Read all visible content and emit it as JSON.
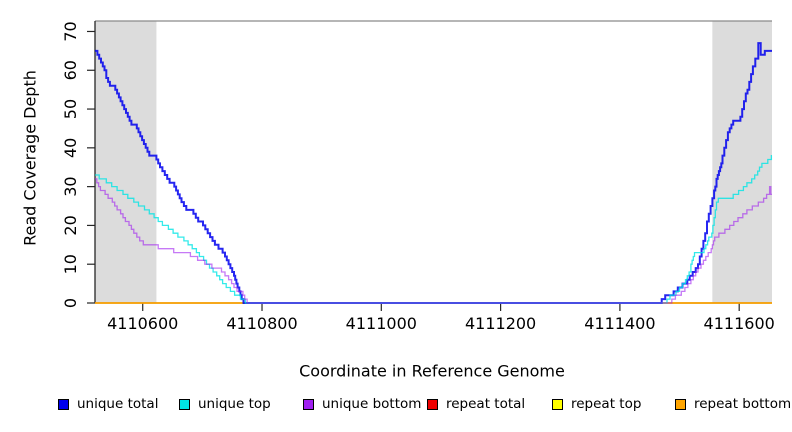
{
  "chart_data": {
    "type": "line",
    "subtype": "step-coverage-plot",
    "title": "",
    "xlabel": "Coordinate in Reference Genome",
    "ylabel": "Read Coverage Depth",
    "xlim": [
      4110520,
      4111655
    ],
    "ylim": [
      0,
      72.7
    ],
    "x_ticks": [
      4110600,
      4110800,
      4111000,
      4111200,
      4111400,
      4111600
    ],
    "y_ticks": [
      0,
      10,
      20,
      30,
      40,
      50,
      60,
      70
    ],
    "grid": false,
    "legend_position": "bottom",
    "background_color": "#FFFFFF",
    "shade_color": "#DCDCDC",
    "frame_color": "#8A8A8A",
    "axis_color": "#262626",
    "shaded_regions": [
      {
        "from": 4110520,
        "to": 4110623
      },
      {
        "from": 4111555,
        "to": 4111655
      }
    ],
    "series": [
      {
        "name": "unique total",
        "color": "#0000EE",
        "line_width": 2,
        "opacity": 0.85,
        "points": [
          [
            4110520,
            65
          ],
          [
            4110524,
            64
          ],
          [
            4110527,
            63
          ],
          [
            4110530,
            62
          ],
          [
            4110533,
            61
          ],
          [
            4110536,
            60
          ],
          [
            4110539,
            58
          ],
          [
            4110542,
            57
          ],
          [
            4110545,
            56
          ],
          [
            4110554,
            55
          ],
          [
            4110557,
            54
          ],
          [
            4110560,
            53
          ],
          [
            4110563,
            52
          ],
          [
            4110566,
            51
          ],
          [
            4110569,
            50
          ],
          [
            4110572,
            49
          ],
          [
            4110575,
            48
          ],
          [
            4110578,
            47
          ],
          [
            4110581,
            46
          ],
          [
            4110590,
            45
          ],
          [
            4110593,
            44
          ],
          [
            4110596,
            43
          ],
          [
            4110599,
            42
          ],
          [
            4110602,
            41
          ],
          [
            4110605,
            40
          ],
          [
            4110608,
            39
          ],
          [
            4110611,
            38
          ],
          [
            4110623,
            37
          ],
          [
            4110626,
            36
          ],
          [
            4110629,
            35
          ],
          [
            4110633,
            34
          ],
          [
            4110637,
            33
          ],
          [
            4110641,
            32
          ],
          [
            4110645,
            31
          ],
          [
            4110653,
            30
          ],
          [
            4110656,
            29
          ],
          [
            4110659,
            28
          ],
          [
            4110662,
            27
          ],
          [
            4110665,
            26
          ],
          [
            4110669,
            25
          ],
          [
            4110673,
            24
          ],
          [
            4110685,
            23
          ],
          [
            4110689,
            22
          ],
          [
            4110693,
            21
          ],
          [
            4110701,
            20
          ],
          [
            4110705,
            19
          ],
          [
            4110709,
            18
          ],
          [
            4110713,
            17
          ],
          [
            4110717,
            16
          ],
          [
            4110721,
            15
          ],
          [
            4110727,
            14
          ],
          [
            4110734,
            13
          ],
          [
            4110738,
            12
          ],
          [
            4110741,
            11
          ],
          [
            4110744,
            10
          ],
          [
            4110747,
            9
          ],
          [
            4110750,
            8
          ],
          [
            4110753,
            7
          ],
          [
            4110755,
            6
          ],
          [
            4110757,
            5
          ],
          [
            4110759,
            4
          ],
          [
            4110762,
            3
          ],
          [
            4110764,
            2
          ],
          [
            4110766,
            1
          ],
          [
            4110769,
            0
          ],
          [
            4111470,
            1
          ],
          [
            4111476,
            2
          ],
          [
            4111490,
            3
          ],
          [
            4111497,
            4
          ],
          [
            4111505,
            5
          ],
          [
            4111513,
            6
          ],
          [
            4111517,
            7
          ],
          [
            4111522,
            8
          ],
          [
            4111527,
            9
          ],
          [
            4111531,
            10
          ],
          [
            4111534,
            12
          ],
          [
            4111537,
            14
          ],
          [
            4111540,
            16
          ],
          [
            4111543,
            18
          ],
          [
            4111546,
            21
          ],
          [
            4111549,
            23
          ],
          [
            4111552,
            25
          ],
          [
            4111555,
            27
          ],
          [
            4111558,
            29
          ],
          [
            4111560,
            30
          ],
          [
            4111562,
            32
          ],
          [
            4111564,
            33
          ],
          [
            4111566,
            34
          ],
          [
            4111568,
            35
          ],
          [
            4111570,
            36
          ],
          [
            4111572,
            38
          ],
          [
            4111575,
            40
          ],
          [
            4111578,
            42
          ],
          [
            4111581,
            44
          ],
          [
            4111584,
            45
          ],
          [
            4111587,
            46
          ],
          [
            4111590,
            47
          ],
          [
            4111602,
            48
          ],
          [
            4111605,
            50
          ],
          [
            4111608,
            52
          ],
          [
            4111611,
            54
          ],
          [
            4111614,
            55
          ],
          [
            4111617,
            57
          ],
          [
            4111620,
            59
          ],
          [
            4111623,
            61
          ],
          [
            4111627,
            63
          ],
          [
            4111632,
            67
          ],
          [
            4111636,
            64
          ],
          [
            4111643,
            65
          ]
        ]
      },
      {
        "name": "unique top",
        "color": "#00E5E5",
        "line_width": 1.3,
        "opacity": 0.8,
        "points": [
          [
            4110520,
            33
          ],
          [
            4110527,
            32
          ],
          [
            4110539,
            31
          ],
          [
            4110548,
            30
          ],
          [
            4110557,
            29
          ],
          [
            4110567,
            28
          ],
          [
            4110575,
            27
          ],
          [
            4110585,
            26
          ],
          [
            4110593,
            25
          ],
          [
            4110603,
            24
          ],
          [
            4110611,
            23
          ],
          [
            4110619,
            22
          ],
          [
            4110626,
            21
          ],
          [
            4110633,
            20
          ],
          [
            4110643,
            19
          ],
          [
            4110651,
            18
          ],
          [
            4110659,
            17
          ],
          [
            4110669,
            16
          ],
          [
            4110676,
            15
          ],
          [
            4110683,
            14
          ],
          [
            4110690,
            13
          ],
          [
            4110695,
            12
          ],
          [
            4110702,
            11
          ],
          [
            4110707,
            10
          ],
          [
            4110712,
            9
          ],
          [
            4110718,
            8
          ],
          [
            4110724,
            7
          ],
          [
            4110729,
            6
          ],
          [
            4110734,
            5
          ],
          [
            4110740,
            4
          ],
          [
            4110747,
            3
          ],
          [
            4110754,
            2
          ],
          [
            4110764,
            1
          ],
          [
            4110772,
            0
          ],
          [
            4111479,
            1
          ],
          [
            4111484,
            2
          ],
          [
            4111494,
            3
          ],
          [
            4111500,
            4
          ],
          [
            4111505,
            5
          ],
          [
            4111510,
            6
          ],
          [
            4111513,
            7
          ],
          [
            4111516,
            8
          ],
          [
            4111519,
            10
          ],
          [
            4111521,
            11
          ],
          [
            4111523,
            12
          ],
          [
            4111525,
            13
          ],
          [
            4111541,
            14
          ],
          [
            4111544,
            15
          ],
          [
            4111547,
            16
          ],
          [
            4111549,
            17
          ],
          [
            4111554,
            18
          ],
          [
            4111556,
            20
          ],
          [
            4111558,
            22
          ],
          [
            4111560,
            24
          ],
          [
            4111562,
            26
          ],
          [
            4111565,
            27
          ],
          [
            4111590,
            28
          ],
          [
            4111599,
            29
          ],
          [
            4111607,
            30
          ],
          [
            4111613,
            31
          ],
          [
            4111621,
            32
          ],
          [
            4111626,
            33
          ],
          [
            4111631,
            34
          ],
          [
            4111634,
            35
          ],
          [
            4111638,
            36
          ],
          [
            4111648,
            37
          ],
          [
            4111654,
            38
          ]
        ]
      },
      {
        "name": "unique bottom",
        "color": "#A020F0",
        "line_width": 1.3,
        "opacity": 0.6,
        "points": [
          [
            4110520,
            32
          ],
          [
            4110523,
            31
          ],
          [
            4110526,
            30
          ],
          [
            4110529,
            29
          ],
          [
            4110537,
            28
          ],
          [
            4110542,
            27
          ],
          [
            4110549,
            26
          ],
          [
            4110553,
            25
          ],
          [
            4110557,
            24
          ],
          [
            4110563,
            23
          ],
          [
            4110567,
            22
          ],
          [
            4110571,
            21
          ],
          [
            4110577,
            20
          ],
          [
            4110581,
            19
          ],
          [
            4110585,
            18
          ],
          [
            4110590,
            17
          ],
          [
            4110595,
            16
          ],
          [
            4110601,
            15
          ],
          [
            4110626,
            14
          ],
          [
            4110652,
            13
          ],
          [
            4110680,
            12
          ],
          [
            4110692,
            11
          ],
          [
            4110704,
            10
          ],
          [
            4110716,
            9
          ],
          [
            4110732,
            8
          ],
          [
            4110738,
            7
          ],
          [
            4110744,
            6
          ],
          [
            4110749,
            5
          ],
          [
            4110753,
            4
          ],
          [
            4110758,
            3
          ],
          [
            4110768,
            2
          ],
          [
            4110771,
            1
          ],
          [
            4110775,
            0
          ],
          [
            4111487,
            1
          ],
          [
            4111493,
            2
          ],
          [
            4111503,
            3
          ],
          [
            4111509,
            4
          ],
          [
            4111514,
            5
          ],
          [
            4111519,
            6
          ],
          [
            4111523,
            7
          ],
          [
            4111527,
            8
          ],
          [
            4111531,
            9
          ],
          [
            4111536,
            10
          ],
          [
            4111540,
            11
          ],
          [
            4111544,
            12
          ],
          [
            4111548,
            13
          ],
          [
            4111553,
            14
          ],
          [
            4111555,
            15
          ],
          [
            4111557,
            16
          ],
          [
            4111559,
            17
          ],
          [
            4111566,
            18
          ],
          [
            4111576,
            19
          ],
          [
            4111584,
            20
          ],
          [
            4111591,
            21
          ],
          [
            4111598,
            22
          ],
          [
            4111606,
            23
          ],
          [
            4111613,
            24
          ],
          [
            4111622,
            25
          ],
          [
            4111632,
            26
          ],
          [
            4111641,
            27
          ],
          [
            4111646,
            28
          ],
          [
            4111651,
            30
          ],
          [
            4111653,
            28
          ]
        ]
      },
      {
        "name": "repeat total",
        "color": "#EE0000",
        "line_width": 1.3,
        "opacity": 1,
        "points": [
          [
            4110520,
            0
          ]
        ]
      },
      {
        "name": "repeat top",
        "color": "#FFFF00",
        "line_width": 1.3,
        "opacity": 1,
        "points": [
          [
            4110520,
            0
          ]
        ]
      },
      {
        "name": "repeat bottom",
        "color": "#FFA500",
        "line_width": 1.5,
        "opacity": 1,
        "points": [
          [
            4110520,
            0
          ]
        ]
      }
    ]
  }
}
